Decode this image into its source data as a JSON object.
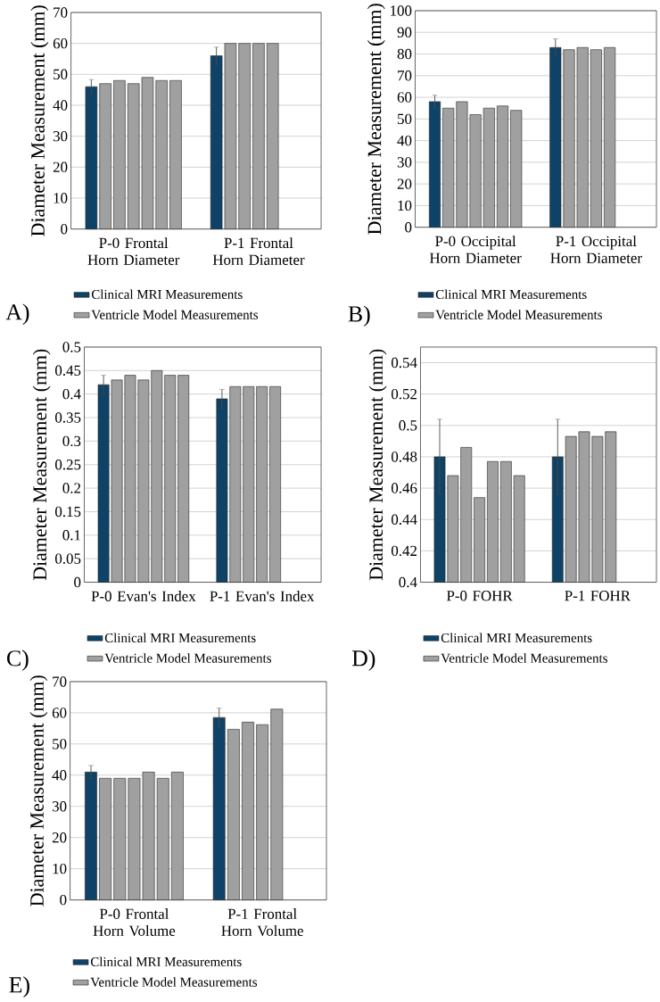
{
  "chart_data": [
    {
      "type": "bar",
      "categories": [
        "P-0 Frontal Horn Diameter",
        "P-1 Frontal Horn Diameter"
      ],
      "ylabel": "Diameter Measurement (mm)",
      "ylim": [
        0,
        70
      ],
      "yticks": [
        0,
        10,
        20,
        30,
        40,
        50,
        60,
        70
      ],
      "grid": "y",
      "legend": "bottom",
      "annotations": [
        "A)"
      ],
      "series": [
        {
          "name": "Clinical MRI Measurements",
          "color": "#0e4266",
          "values": [
            46,
            56
          ],
          "errors": [
            2.3,
            2.8
          ]
        },
        {
          "name": "Ventricle Model Measurements",
          "color": "#a0a0a0",
          "values": [
            47,
            60
          ]
        },
        {
          "color": "#a0a0a0",
          "values": [
            48,
            60
          ]
        },
        {
          "color": "#a0a0a0",
          "values": [
            47,
            60
          ]
        },
        {
          "color": "#a0a0a0",
          "values": [
            49,
            60
          ]
        },
        {
          "color": "#a0a0a0",
          "values": [
            48,
            null
          ]
        },
        {
          "color": "#a0a0a0",
          "values": [
            48,
            null
          ]
        }
      ]
    },
    {
      "type": "bar",
      "categories": [
        "P-0 Occipital Horn Diameter",
        "P-1 Occipital Horn Diameter"
      ],
      "ylabel": "Diameter Measurement (mm)",
      "ylim": [
        0,
        100
      ],
      "yticks": [
        0,
        10,
        20,
        30,
        40,
        50,
        60,
        70,
        80,
        90,
        100
      ],
      "grid": "y",
      "legend": "bottom",
      "annotations": [
        "B)"
      ],
      "series": [
        {
          "name": "Clinical MRI Measurements",
          "color": "#0e4266",
          "values": [
            58,
            83
          ],
          "errors": [
            3,
            4
          ]
        },
        {
          "name": "Ventricle Model Measurements",
          "color": "#a0a0a0",
          "values": [
            55,
            82
          ]
        },
        {
          "color": "#a0a0a0",
          "values": [
            58,
            83
          ]
        },
        {
          "color": "#a0a0a0",
          "values": [
            52,
            82
          ]
        },
        {
          "color": "#a0a0a0",
          "values": [
            55,
            83
          ]
        },
        {
          "color": "#a0a0a0",
          "values": [
            56,
            null
          ]
        },
        {
          "color": "#a0a0a0",
          "values": [
            54,
            null
          ]
        }
      ]
    },
    {
      "type": "bar",
      "categories": [
        "P-0 Evan's Index",
        "P-1 Evan's Index"
      ],
      "ylabel": "Diameter Measurement (mm)",
      "ylim": [
        0,
        0.5
      ],
      "yticks": [
        0,
        0.05,
        0.1,
        0.15,
        0.2,
        0.25,
        0.3,
        0.35,
        0.4,
        0.45,
        0.5
      ],
      "grid": "y",
      "legend": "bottom",
      "annotations": [
        "C)"
      ],
      "series": [
        {
          "name": "Clinical MRI Measurements",
          "color": "#0e4266",
          "values": [
            0.42,
            0.39
          ],
          "errors": [
            0.02,
            0.02
          ]
        },
        {
          "name": "Ventricle Model Measurements",
          "color": "#a0a0a0",
          "values": [
            0.43,
            0.416
          ]
        },
        {
          "color": "#a0a0a0",
          "values": [
            0.44,
            0.416
          ]
        },
        {
          "color": "#a0a0a0",
          "values": [
            0.43,
            0.416
          ]
        },
        {
          "color": "#a0a0a0",
          "values": [
            0.45,
            0.416
          ]
        },
        {
          "color": "#a0a0a0",
          "values": [
            0.44,
            null
          ]
        },
        {
          "color": "#a0a0a0",
          "values": [
            0.44,
            null
          ]
        }
      ]
    },
    {
      "type": "bar",
      "categories": [
        "P-0 FOHR",
        "P-1 FOHR"
      ],
      "ylabel": "Diameter Measurement (mm)",
      "ylim": [
        0.4,
        0.55
      ],
      "yticks": [
        0.4,
        0.42,
        0.44,
        0.46,
        0.48,
        0.5,
        0.52,
        0.54
      ],
      "grid": "y",
      "legend": "bottom",
      "annotations": [
        "D)"
      ],
      "series": [
        {
          "name": "Clinical MRI Measurements",
          "color": "#0e4266",
          "values": [
            0.48,
            0.48
          ],
          "errors": [
            0.024,
            0.024
          ]
        },
        {
          "name": "Ventricle Model Measurements",
          "color": "#a0a0a0",
          "values": [
            0.468,
            0.493
          ]
        },
        {
          "color": "#a0a0a0",
          "values": [
            0.486,
            0.496
          ]
        },
        {
          "color": "#a0a0a0",
          "values": [
            0.454,
            0.493
          ]
        },
        {
          "color": "#a0a0a0",
          "values": [
            0.477,
            0.496
          ]
        },
        {
          "color": "#a0a0a0",
          "values": [
            0.477,
            null
          ]
        },
        {
          "color": "#a0a0a0",
          "values": [
            0.468,
            null
          ]
        }
      ]
    },
    {
      "type": "bar",
      "categories": [
        "P-0 Frontal Horn Volume",
        "P-1 Frontal Horn Volume"
      ],
      "ylabel": "Diameter Measurement (mm)",
      "ylim": [
        0,
        70
      ],
      "yticks": [
        0,
        10,
        20,
        30,
        40,
        50,
        60,
        70
      ],
      "grid": "y",
      "legend": "bottom",
      "annotations": [
        "E)"
      ],
      "series": [
        {
          "name": "Clinical MRI Measurements",
          "color": "#0e4266",
          "values": [
            41,
            58.5
          ],
          "errors": [
            2.1,
            3
          ]
        },
        {
          "name": "Ventricle Model Measurements",
          "color": "#a0a0a0",
          "values": [
            39,
            54.7
          ]
        },
        {
          "color": "#a0a0a0",
          "values": [
            39,
            57
          ]
        },
        {
          "color": "#a0a0a0",
          "values": [
            39,
            56.2
          ]
        },
        {
          "color": "#a0a0a0",
          "values": [
            41,
            61.2
          ]
        },
        {
          "color": "#a0a0a0",
          "values": [
            39,
            null
          ]
        },
        {
          "color": "#a0a0a0",
          "values": [
            41,
            null
          ]
        }
      ]
    }
  ]
}
